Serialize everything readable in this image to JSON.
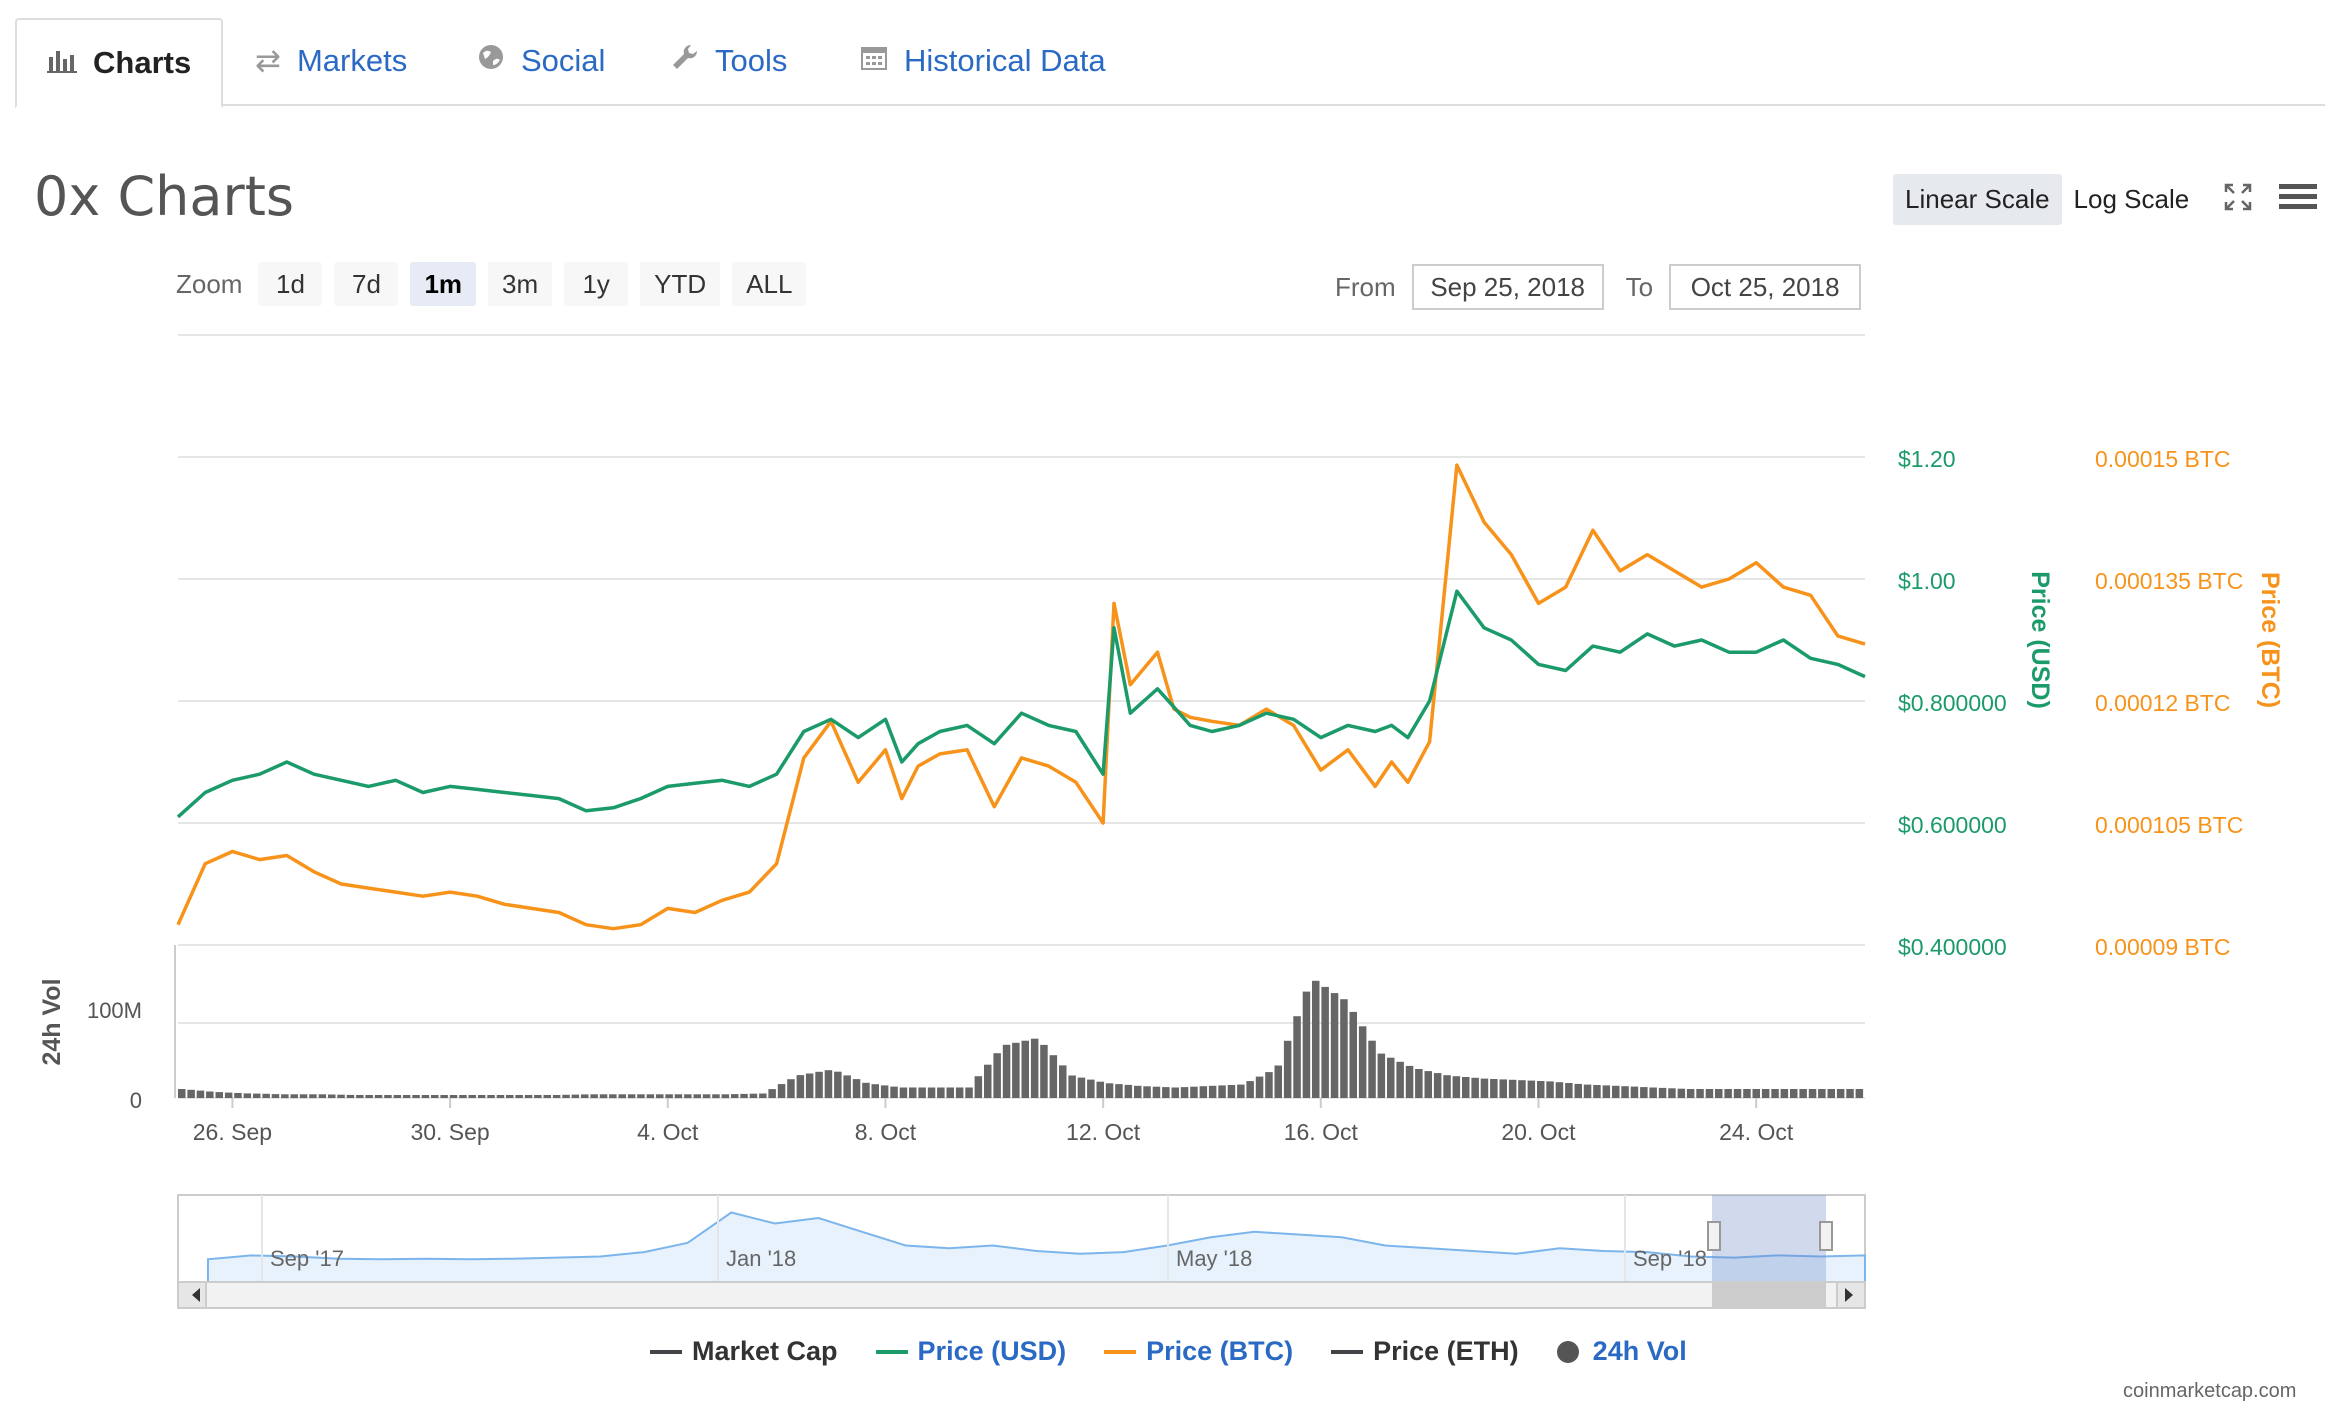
{
  "tabs": [
    {
      "label": "Charts",
      "icon": "bar-chart-icon",
      "active": true
    },
    {
      "label": "Markets",
      "icon": "exchange-icon",
      "active": false
    },
    {
      "label": "Social",
      "icon": "globe-icon",
      "active": false
    },
    {
      "label": "Tools",
      "icon": "wrench-icon",
      "active": false
    },
    {
      "label": "Historical Data",
      "icon": "calendar-icon",
      "active": false
    }
  ],
  "page_title": "0x Charts",
  "scale": {
    "linear": "Linear Scale",
    "log": "Log Scale",
    "selected": "linear"
  },
  "zoom": {
    "label": "Zoom",
    "options": [
      "1d",
      "7d",
      "1m",
      "3m",
      "1y",
      "YTD",
      "ALL"
    ],
    "selected": "1m"
  },
  "range": {
    "from_label": "From",
    "from": "Sep 25, 2018",
    "to_label": "To",
    "to": "Oct 25, 2018"
  },
  "legend": [
    {
      "label": "Market Cap",
      "color": "#434348",
      "kind": "line"
    },
    {
      "label": "Price (USD)",
      "color": "#1b9a6a",
      "kind": "line"
    },
    {
      "label": "Price (BTC)",
      "color": "#f7931a",
      "kind": "line"
    },
    {
      "label": "Price (ETH)",
      "color": "#434348",
      "kind": "line"
    },
    {
      "label": "24h Vol",
      "color": "#555555",
      "kind": "dot"
    }
  ],
  "credit": "coinmarketcap.com",
  "colors": {
    "usd": "#1b9a6a",
    "btc": "#f7931a",
    "vol": "#666666",
    "nav": "#7cb5ec",
    "link": "#2a6ac4"
  },
  "chart_data": {
    "type": "line",
    "title": "",
    "x_range": [
      "2018-09-25",
      "2018-10-25"
    ],
    "x_ticks": [
      "26. Sep",
      "30. Sep",
      "4. Oct",
      "8. Oct",
      "12. Oct",
      "16. Oct",
      "20. Oct",
      "24. Oct"
    ],
    "y_left": {
      "label": "Price (USD)",
      "ticks": [
        "$0.400000",
        "$0.600000",
        "$0.800000",
        "$1.00",
        "$1.20"
      ],
      "range": [
        0.4,
        1.4
      ]
    },
    "y_right": {
      "label": "Price (BTC)",
      "ticks": [
        "0.00009 BTC",
        "0.000105 BTC",
        "0.00012 BTC",
        "0.000135 BTC",
        "0.00015 BTC"
      ],
      "range": [
        9e-05,
        0.000165
      ]
    },
    "series": [
      {
        "name": "Price (USD)",
        "axis": "left",
        "x": [
          25.0,
          25.5,
          26.0,
          26.5,
          27.0,
          27.5,
          28.0,
          28.5,
          29.0,
          29.5,
          30.0,
          30.5,
          31.0,
          31.5,
          32.0,
          32.5,
          33.0,
          33.5,
          34.0,
          34.5,
          35.0,
          35.5,
          36.0,
          36.5,
          37.0,
          37.5,
          38.0,
          38.3,
          38.6,
          39.0,
          39.5,
          40.0,
          40.5,
          41.0,
          41.5,
          42.0,
          42.2,
          42.5,
          43.0,
          43.3,
          43.6,
          44.0,
          44.5,
          45.0,
          45.5,
          46.0,
          46.5,
          47.0,
          47.3,
          47.6,
          48.0,
          48.5,
          49.0,
          49.5,
          50.0,
          50.5,
          51.0,
          51.5,
          52.0,
          52.5,
          53.0,
          53.5,
          54.0,
          54.5,
          55.0,
          55.5,
          56.0
        ],
        "y": [
          0.61,
          0.65,
          0.67,
          0.68,
          0.7,
          0.68,
          0.67,
          0.66,
          0.67,
          0.65,
          0.66,
          0.655,
          0.65,
          0.645,
          0.64,
          0.62,
          0.625,
          0.64,
          0.66,
          0.665,
          0.67,
          0.66,
          0.68,
          0.75,
          0.77,
          0.74,
          0.77,
          0.7,
          0.73,
          0.75,
          0.76,
          0.73,
          0.78,
          0.76,
          0.75,
          0.68,
          0.92,
          0.78,
          0.82,
          0.79,
          0.76,
          0.75,
          0.76,
          0.78,
          0.77,
          0.74,
          0.76,
          0.75,
          0.76,
          0.74,
          0.8,
          0.98,
          0.92,
          0.9,
          0.86,
          0.85,
          0.89,
          0.88,
          0.91,
          0.89,
          0.9,
          0.88,
          0.88,
          0.9,
          0.87,
          0.86,
          0.84
        ]
      },
      {
        "name": "Price (BTC)",
        "axis": "right",
        "x": [
          25.0,
          25.5,
          26.0,
          26.5,
          27.0,
          27.5,
          28.0,
          28.5,
          29.0,
          29.5,
          30.0,
          30.5,
          31.0,
          31.5,
          32.0,
          32.5,
          33.0,
          33.5,
          34.0,
          34.5,
          35.0,
          35.5,
          36.0,
          36.5,
          37.0,
          37.5,
          38.0,
          38.3,
          38.6,
          39.0,
          39.5,
          40.0,
          40.5,
          41.0,
          41.5,
          42.0,
          42.2,
          42.5,
          43.0,
          43.3,
          43.6,
          44.0,
          44.5,
          45.0,
          45.5,
          46.0,
          46.5,
          47.0,
          47.3,
          47.6,
          48.0,
          48.5,
          49.0,
          49.5,
          50.0,
          50.5,
          51.0,
          51.5,
          52.0,
          52.5,
          53.0,
          53.5,
          54.0,
          54.5,
          55.0,
          55.5,
          56.0
        ],
        "y": [
          9.25e-05,
          0.0001,
          0.0001015,
          0.0001005,
          0.000101,
          9.9e-05,
          9.75e-05,
          9.7e-05,
          9.65e-05,
          9.6e-05,
          9.65e-05,
          9.6e-05,
          9.5e-05,
          9.45e-05,
          9.4e-05,
          9.25e-05,
          9.2e-05,
          9.25e-05,
          9.45e-05,
          9.4e-05,
          9.55e-05,
          9.65e-05,
          0.0001,
          0.000113,
          0.0001175,
          0.00011,
          0.000114,
          0.000108,
          0.000112,
          0.0001135,
          0.000114,
          0.000107,
          0.000113,
          0.000112,
          0.00011,
          0.000105,
          0.000132,
          0.000122,
          0.000126,
          0.000119,
          0.000118,
          0.0001175,
          0.000117,
          0.000119,
          0.000117,
          0.0001115,
          0.000114,
          0.0001095,
          0.0001125,
          0.00011,
          0.000115,
          0.000149,
          0.000142,
          0.000138,
          0.000132,
          0.000134,
          0.000141,
          0.000136,
          0.000138,
          0.000136,
          0.000134,
          0.000135,
          0.000137,
          0.000134,
          0.000133,
          0.000128,
          0.000127
        ]
      },
      {
        "name": "24h Vol",
        "type": "bar",
        "x_range": [
          25.0,
          56.0
        ],
        "peaks_M": [
          12,
          8,
          6,
          5,
          5,
          4,
          4,
          4,
          4,
          4,
          4,
          4,
          5,
          5,
          5,
          5,
          5,
          6,
          30,
          38,
          20,
          14,
          14,
          14,
          70,
          80,
          30,
          20,
          16,
          14,
          16,
          18,
          40,
          160,
          130,
          60,
          40,
          30,
          26,
          24,
          22,
          18,
          16,
          14,
          12,
          12,
          12,
          12,
          12,
          12
        ]
      }
    ],
    "volume_axis": {
      "label": "24h Vol",
      "ticks": [
        "0",
        "100M"
      ]
    },
    "navigator": {
      "labels": [
        "Sep '17",
        "Jan '18",
        "May '18",
        "Sep '18"
      ]
    },
    "legend_placement": "bottom-center",
    "grid": true
  }
}
